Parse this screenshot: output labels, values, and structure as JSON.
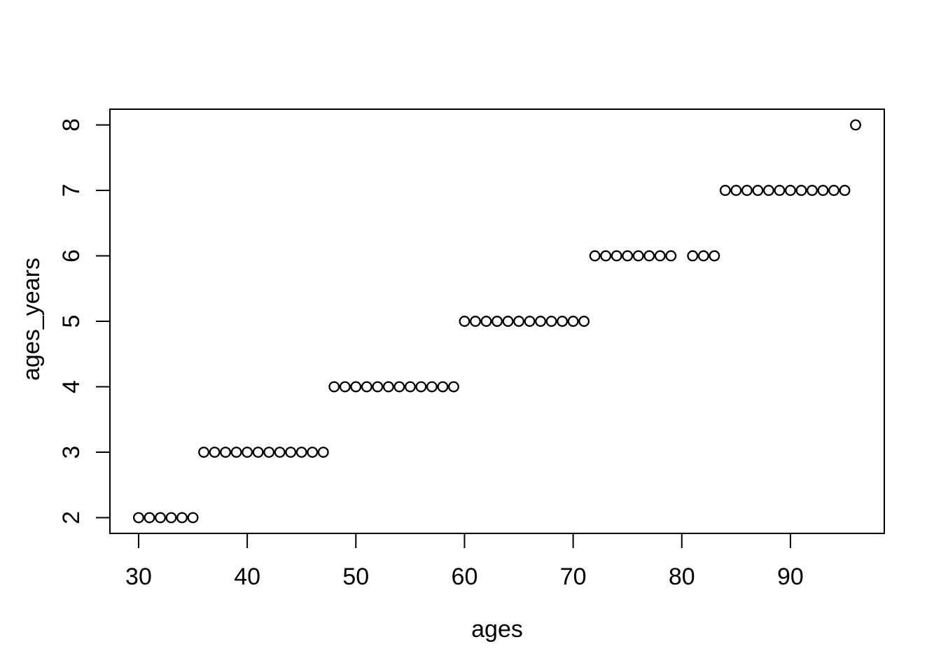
{
  "page": {
    "background_color": "#ffffff",
    "foreground_color": "#000000"
  },
  "chart_data": {
    "type": "scatter",
    "title": "",
    "xlabel": "ages",
    "ylabel": "ages_years",
    "xlim": [
      27.36,
      98.64
    ],
    "ylim": [
      1.76,
      8.24
    ],
    "x_ticks": [
      30,
      40,
      50,
      60,
      70,
      80,
      90
    ],
    "y_ticks": [
      2,
      3,
      4,
      5,
      6,
      7,
      8
    ],
    "grid": false,
    "legend": null,
    "marker": "open-circle",
    "marker_color": "#000000",
    "axis_color": "#000000",
    "points": [
      [
        30,
        2
      ],
      [
        31,
        2
      ],
      [
        32,
        2
      ],
      [
        33,
        2
      ],
      [
        34,
        2
      ],
      [
        35,
        2
      ],
      [
        36,
        3
      ],
      [
        37,
        3
      ],
      [
        38,
        3
      ],
      [
        39,
        3
      ],
      [
        40,
        3
      ],
      [
        41,
        3
      ],
      [
        42,
        3
      ],
      [
        43,
        3
      ],
      [
        44,
        3
      ],
      [
        45,
        3
      ],
      [
        46,
        3
      ],
      [
        47,
        3
      ],
      [
        48,
        4
      ],
      [
        49,
        4
      ],
      [
        50,
        4
      ],
      [
        51,
        4
      ],
      [
        52,
        4
      ],
      [
        53,
        4
      ],
      [
        54,
        4
      ],
      [
        55,
        4
      ],
      [
        56,
        4
      ],
      [
        57,
        4
      ],
      [
        58,
        4
      ],
      [
        59,
        4
      ],
      [
        60,
        5
      ],
      [
        61,
        5
      ],
      [
        62,
        5
      ],
      [
        63,
        5
      ],
      [
        64,
        5
      ],
      [
        65,
        5
      ],
      [
        66,
        5
      ],
      [
        67,
        5
      ],
      [
        68,
        5
      ],
      [
        69,
        5
      ],
      [
        70,
        5
      ],
      [
        71,
        5
      ],
      [
        72,
        6
      ],
      [
        73,
        6
      ],
      [
        74,
        6
      ],
      [
        75,
        6
      ],
      [
        76,
        6
      ],
      [
        77,
        6
      ],
      [
        78,
        6
      ],
      [
        79,
        6
      ],
      [
        81,
        6
      ],
      [
        82,
        6
      ],
      [
        83,
        6
      ],
      [
        84,
        7
      ],
      [
        85,
        7
      ],
      [
        86,
        7
      ],
      [
        87,
        7
      ],
      [
        88,
        7
      ],
      [
        89,
        7
      ],
      [
        90,
        7
      ],
      [
        91,
        7
      ],
      [
        92,
        7
      ],
      [
        93,
        7
      ],
      [
        94,
        7
      ],
      [
        95,
        7
      ],
      [
        96,
        8
      ]
    ]
  }
}
